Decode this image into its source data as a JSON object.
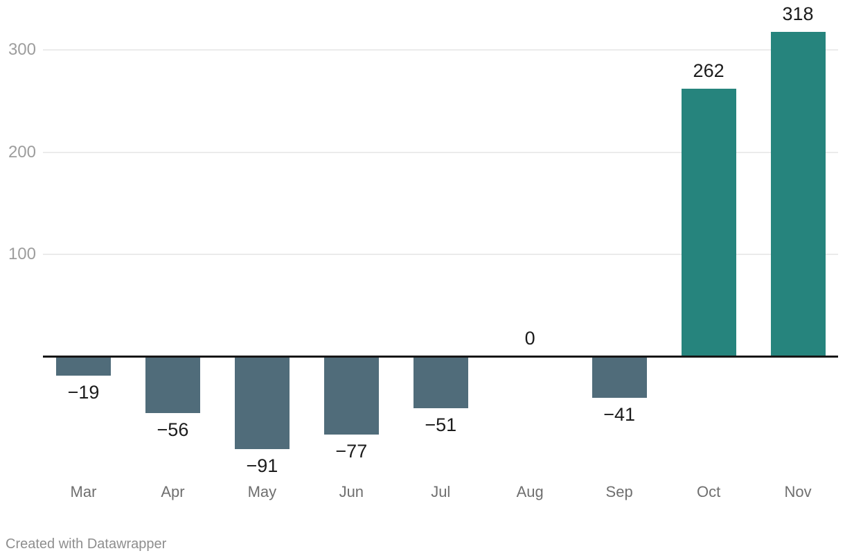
{
  "chart_data": {
    "type": "bar",
    "categories": [
      "Mar",
      "Apr",
      "May",
      "Jun",
      "Jul",
      "Aug",
      "Sep",
      "Oct",
      "Nov"
    ],
    "values": [
      -19,
      -56,
      -91,
      -77,
      -51,
      0,
      -41,
      262,
      318
    ],
    "value_labels": [
      "−19",
      "−56",
      "−91",
      "−77",
      "−51",
      "0",
      "−41",
      "262",
      "318"
    ],
    "title": "",
    "xlabel": "",
    "ylabel": "",
    "y_ticks": [
      100,
      200,
      300
    ],
    "ylim": [
      -130,
      340
    ],
    "grid": "horizontal-only",
    "legend": "none",
    "colors": {
      "positive_bar": "#26847D",
      "negative_bar": "#506C7A",
      "value_label": "#1B1B1B",
      "category_label": "#6F6F6F",
      "y_tick_label": "#9D9D9D",
      "gridline": "#EBEBEB",
      "baseline": "#161616"
    }
  },
  "footer": {
    "attribution": "Created with Datawrapper",
    "color": "#8E8E8E"
  }
}
